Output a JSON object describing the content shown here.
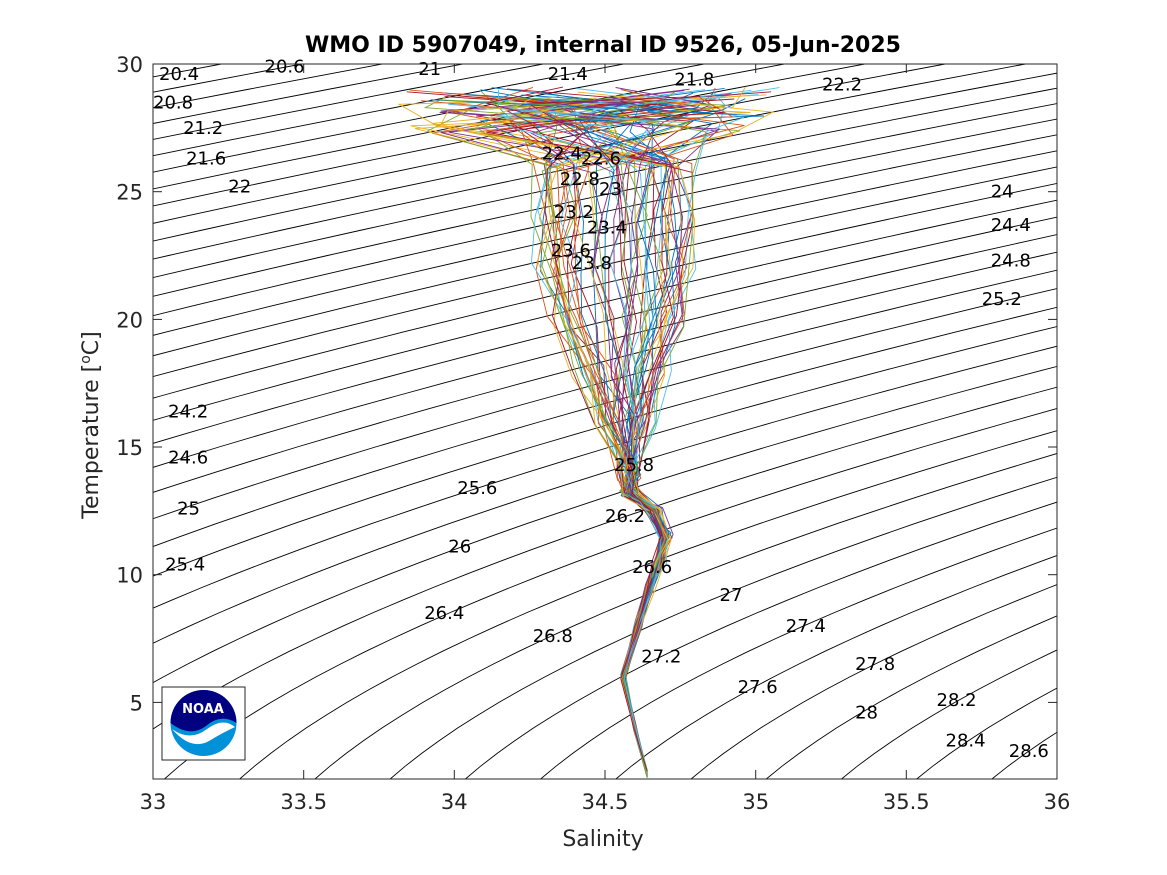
{
  "chart_data": {
    "type": "line",
    "title": "WMO ID 5907049, internal ID 9526, 05-Jun-2025",
    "xlabel": "Salinity",
    "ylabel_main": "Temperature [",
    "ylabel_sup": "o",
    "ylabel_end": "C]",
    "xlim": [
      33,
      36
    ],
    "ylim": [
      2,
      30
    ],
    "grid": false,
    "legend": "none",
    "xticks": [
      33,
      33.5,
      34,
      34.5,
      35,
      35.5,
      36
    ],
    "xtick_labels": [
      "33",
      "33.5",
      "34",
      "34.5",
      "35",
      "35.5",
      "36"
    ],
    "yticks": [
      5,
      10,
      15,
      20,
      25,
      30
    ],
    "ytick_labels": [
      "5",
      "10",
      "15",
      "20",
      "25",
      "30"
    ],
    "isopycnals": {
      "sigma_start": 20.0,
      "sigma_end": 29.2,
      "sigma_step": 0.2,
      "color": "#000000"
    },
    "isopycnal_labels": [
      {
        "text": "20.4",
        "s": 33.02,
        "t": 29.6
      },
      {
        "text": "20.6",
        "s": 33.37,
        "t": 29.9
      },
      {
        "text": "21",
        "s": 33.88,
        "t": 29.8
      },
      {
        "text": "21.4",
        "s": 34.31,
        "t": 29.6
      },
      {
        "text": "21.8",
        "s": 34.73,
        "t": 29.4
      },
      {
        "text": "22.2",
        "s": 35.22,
        "t": 29.2
      },
      {
        "text": "20.8",
        "s": 33.0,
        "t": 28.5
      },
      {
        "text": "21.2",
        "s": 33.1,
        "t": 27.5
      },
      {
        "text": "21.6",
        "s": 33.11,
        "t": 26.3
      },
      {
        "text": "22",
        "s": 33.25,
        "t": 25.2
      },
      {
        "text": "22.4",
        "s": 34.29,
        "t": 26.5
      },
      {
        "text": "22.6",
        "s": 34.42,
        "t": 26.3
      },
      {
        "text": "22.8",
        "s": 34.35,
        "t": 25.5
      },
      {
        "text": "23",
        "s": 34.48,
        "t": 25.1
      },
      {
        "text": "23.2",
        "s": 34.33,
        "t": 24.2
      },
      {
        "text": "23.4",
        "s": 34.44,
        "t": 23.6
      },
      {
        "text": "23.6",
        "s": 34.32,
        "t": 22.7
      },
      {
        "text": "23.8",
        "s": 34.39,
        "t": 22.2
      },
      {
        "text": "24",
        "s": 35.78,
        "t": 25.0
      },
      {
        "text": "24.4",
        "s": 35.78,
        "t": 23.7
      },
      {
        "text": "24.8",
        "s": 35.78,
        "t": 22.3
      },
      {
        "text": "25.2",
        "s": 35.75,
        "t": 20.8
      },
      {
        "text": "24.2",
        "s": 33.05,
        "t": 16.4
      },
      {
        "text": "24.6",
        "s": 33.05,
        "t": 14.6
      },
      {
        "text": "25",
        "s": 33.08,
        "t": 12.6
      },
      {
        "text": "25.4",
        "s": 33.04,
        "t": 10.4
      },
      {
        "text": "25.6",
        "s": 34.01,
        "t": 13.4
      },
      {
        "text": "26",
        "s": 33.98,
        "t": 11.1
      },
      {
        "text": "26.4",
        "s": 33.9,
        "t": 8.5
      },
      {
        "text": "26.8",
        "s": 34.26,
        "t": 7.6
      },
      {
        "text": "25.8",
        "s": 34.53,
        "t": 14.3
      },
      {
        "text": "26.2",
        "s": 34.5,
        "t": 12.3
      },
      {
        "text": "26.6",
        "s": 34.59,
        "t": 10.3
      },
      {
        "text": "27",
        "s": 34.88,
        "t": 9.2
      },
      {
        "text": "27.2",
        "s": 34.62,
        "t": 6.8
      },
      {
        "text": "27.4",
        "s": 35.1,
        "t": 8.0
      },
      {
        "text": "27.6",
        "s": 34.94,
        "t": 5.6
      },
      {
        "text": "27.8",
        "s": 35.33,
        "t": 6.5
      },
      {
        "text": "28",
        "s": 35.33,
        "t": 4.6
      },
      {
        "text": "28.2",
        "s": 35.6,
        "t": 5.1
      },
      {
        "text": "28.4",
        "s": 35.63,
        "t": 3.5
      },
      {
        "text": "28.6",
        "s": 35.84,
        "t": 3.1
      }
    ],
    "profile_colors": [
      "#0072BD",
      "#D95319",
      "#EDB120",
      "#7E2F8E",
      "#77AC30",
      "#4DBEEE",
      "#A2142F"
    ],
    "profile_count": 70,
    "profile_shape": {
      "deep_t": [
        2.2,
        4.0,
        6.0,
        8.0,
        9.5,
        10.5,
        11.5,
        12.5,
        13.2
      ],
      "deep_s": [
        34.64,
        34.6,
        34.56,
        34.61,
        34.65,
        34.68,
        34.7,
        34.66,
        34.58
      ],
      "thermocline_t": [
        14.0,
        16.0,
        18.0,
        20.0,
        22.0,
        24.0,
        26.0,
        27.5,
        28.2,
        28.8
      ],
      "thermocline_s_range": [
        34.28,
        34.78
      ],
      "surface_s_range": [
        33.85,
        35.05
      ]
    },
    "logo": {
      "text": "NOAA",
      "colors": [
        "#000080",
        "#0091d8",
        "#ffffff"
      ]
    }
  }
}
